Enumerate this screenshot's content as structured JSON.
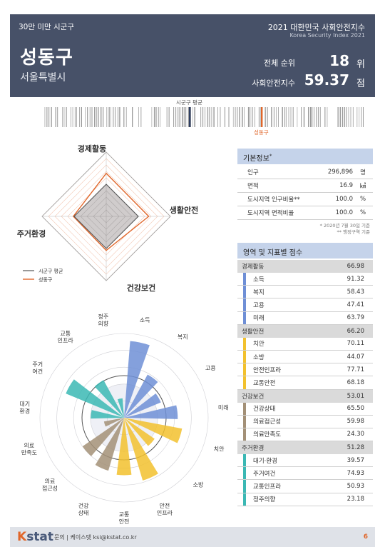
{
  "header": {
    "category": "30만 미만 시군구",
    "index_title_kr": "2021 대한민국 사회안전지수",
    "index_title_en": "Korea Security Index 2021",
    "district": "성동구",
    "city": "서울특별시",
    "rank_label": "전체 순위",
    "rank_value": "18",
    "rank_unit": "위",
    "score_label": "사회안전지수",
    "score_value": "59.37",
    "score_unit": "점"
  },
  "strip": {
    "avg_label": "시군구 평균",
    "district_label": "성동구",
    "avg_color": "#2f3f63",
    "district_color": "#e0662a"
  },
  "radar": {
    "axes": [
      "경제활동",
      "생활안전",
      "건강보건",
      "주거환경"
    ],
    "legend": [
      {
        "label": "시군구 평균",
        "color": "#555555"
      },
      {
        "label": "성동구",
        "color": "#e0662a"
      }
    ]
  },
  "chart_data": {
    "type": "radar",
    "categories": [
      "경제활동",
      "생활안전",
      "건강보건",
      "주거환경"
    ],
    "series": [
      {
        "name": "시군구 평균",
        "values": [
          50,
          50,
          50,
          50
        ]
      },
      {
        "name": "성동구",
        "values": [
          66.98,
          66.2,
          53.01,
          51.28
        ]
      }
    ],
    "range": [
      0,
      100
    ]
  },
  "polar": {
    "labels": [
      "소득",
      "복지",
      "고용",
      "미래",
      "치안",
      "소방",
      "안전 인프라",
      "교통 안전",
      "건강 상태",
      "의료 접근성",
      "의료 만족도",
      "대기 환경",
      "주거 여건",
      "교통 인프라",
      "정주 의향"
    ],
    "values": [
      91.32,
      58.43,
      47.41,
      63.79,
      70.11,
      44.07,
      77.71,
      68.18,
      65.5,
      59.98,
      24.3,
      39.57,
      74.93,
      50.93,
      23.18
    ],
    "colors": [
      "#6f8fd6",
      "#6f8fd6",
      "#6f8fd6",
      "#6f8fd6",
      "#f2c12e",
      "#f2c12e",
      "#f2c12e",
      "#f2c12e",
      "#a39077",
      "#a39077",
      "#a39077",
      "#3bb8b4",
      "#3bb8b4",
      "#3bb8b4",
      "#3bb8b4"
    ]
  },
  "basic_info": {
    "title": "기본정보",
    "mark": "*",
    "rows": [
      {
        "label": "인구",
        "value": "296,896",
        "unit": "명"
      },
      {
        "label": "면적",
        "value": "16.9",
        "unit": "㎢"
      },
      {
        "label": "도시지역 인구비율**",
        "value": "100.0",
        "unit": "%"
      },
      {
        "label": "도시지역 면적비율",
        "value": "100.0",
        "unit": "%"
      }
    ],
    "note1": "* 2020년 7월 30일 기준",
    "note2": "** 행정구역 기준"
  },
  "scores": {
    "title": "영역 및 지표별 점수",
    "groups": [
      {
        "name": "경제활동",
        "value": "66.98",
        "color": "#6f8fd6",
        "items": [
          {
            "name": "소득",
            "value": "91.32"
          },
          {
            "name": "복지",
            "value": "58.43"
          },
          {
            "name": "고용",
            "value": "47.41"
          },
          {
            "name": "미래",
            "value": "63.79"
          }
        ]
      },
      {
        "name": "생활안전",
        "value": "66.20",
        "color": "#f2c12e",
        "items": [
          {
            "name": "치안",
            "value": "70.11"
          },
          {
            "name": "소방",
            "value": "44.07"
          },
          {
            "name": "안전인프라",
            "value": "77.71"
          },
          {
            "name": "교통안전",
            "value": "68.18"
          }
        ]
      },
      {
        "name": "건강보건",
        "value": "53.01",
        "color": "#a39077",
        "items": [
          {
            "name": "건강상태",
            "value": "65.50"
          },
          {
            "name": "의료접근성",
            "value": "59.98"
          },
          {
            "name": "의료만족도",
            "value": "24.30"
          }
        ]
      },
      {
        "name": "주거환경",
        "value": "51.28",
        "color": "#3bb8b4",
        "items": [
          {
            "name": "대기·환경",
            "value": "39.57"
          },
          {
            "name": "주거여건",
            "value": "74.93"
          },
          {
            "name": "교통인프라",
            "value": "50.93"
          },
          {
            "name": "정주의향",
            "value": "23.18"
          }
        ]
      }
    ]
  },
  "footer": {
    "logo_k": "K",
    "logo_rest": "stat",
    "contact": "문의 | 케이스탯 ksi@kstat.co.kr",
    "page": "6"
  }
}
